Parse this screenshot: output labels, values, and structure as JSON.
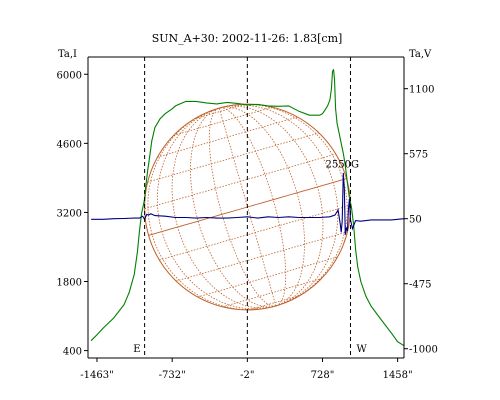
{
  "chart_data": {
    "type": "line",
    "title": "SUN_A+30: 2002-11-26: 1.83[cm]",
    "left_axis_label": "Ta,I",
    "right_axis_label": "Ta,V",
    "x_ticks": [
      "-1463\"",
      "-732\"",
      "-2\"",
      "728\"",
      "1458\""
    ],
    "x_tick_values": [
      -1463,
      -732,
      -2,
      728,
      1458
    ],
    "xlim": [
      -1550,
      1520
    ],
    "left_ticks": [
      6000,
      4600,
      3200,
      1800,
      400
    ],
    "ylim_left": [
      250,
      6350
    ],
    "right_ticks": [
      1100,
      575,
      50,
      -475,
      -1000
    ],
    "ylim_right": [
      -1075,
      1356
    ],
    "limb_markers": [
      {
        "label": "E",
        "x": -1000
      },
      {
        "label": "W",
        "x": 1000
      }
    ],
    "center_marker_x": -2,
    "annotation": {
      "label": "2550G",
      "x": 920,
      "y_right": 400
    },
    "series": [
      {
        "axis": "left",
        "color": "#008000",
        "x": [
          -1520,
          -1463,
          -1400,
          -1300,
          -1200,
          -1150,
          -1100,
          -1070,
          -1050,
          -1030,
          -1010,
          -1000,
          -990,
          -970,
          -950,
          -930,
          -900,
          -850,
          -800,
          -732,
          -700,
          -600,
          -500,
          -400,
          -300,
          -200,
          -100,
          -2,
          100,
          200,
          300,
          400,
          500,
          600,
          700,
          728,
          760,
          780,
          800,
          815,
          825,
          835,
          845,
          855,
          870,
          890,
          910,
          930,
          950,
          970,
          990,
          1000,
          1010,
          1030,
          1050,
          1070,
          1100,
          1150,
          1200,
          1300,
          1400,
          1458,
          1520
        ],
        "y": [
          600,
          720,
          860,
          1060,
          1330,
          1580,
          1950,
          2400,
          2830,
          3170,
          3370,
          3480,
          3700,
          4050,
          4350,
          4650,
          4920,
          5100,
          5200,
          5300,
          5360,
          5450,
          5450,
          5420,
          5400,
          5430,
          5410,
          5380,
          5390,
          5360,
          5350,
          5360,
          5250,
          5170,
          5170,
          5200,
          5300,
          5370,
          5480,
          5700,
          6050,
          6100,
          5900,
          5300,
          5000,
          4800,
          4600,
          4400,
          4150,
          3800,
          3500,
          3400,
          3300,
          2950,
          2450,
          2100,
          1800,
          1500,
          1300,
          1020,
          750,
          580,
          500
        ]
      },
      {
        "axis": "right",
        "color": "#000080",
        "x": [
          -1520,
          -1400,
          -1300,
          -1200,
          -1100,
          -1050,
          -1020,
          -1000,
          -980,
          -960,
          -940,
          -900,
          -800,
          -700,
          -600,
          -500,
          -400,
          -300,
          -200,
          -100,
          -2,
          100,
          200,
          300,
          400,
          500,
          600,
          700,
          800,
          850,
          880,
          900,
          910,
          920,
          930,
          940,
          950,
          960,
          970,
          980,
          990,
          1000,
          1020,
          1050,
          1100,
          1200,
          1300,
          1400,
          1520
        ],
        "y": [
          45,
          45,
          50,
          52,
          55,
          55,
          70,
          45,
          85,
          80,
          90,
          75,
          70,
          60,
          60,
          55,
          60,
          55,
          55,
          60,
          65,
          55,
          65,
          60,
          65,
          60,
          60,
          60,
          65,
          80,
          120,
          10,
          -60,
          30,
          420,
          300,
          -80,
          -20,
          -50,
          120,
          210,
          40,
          -30,
          35,
          30,
          40,
          40,
          40,
          50
        ]
      }
    ]
  }
}
